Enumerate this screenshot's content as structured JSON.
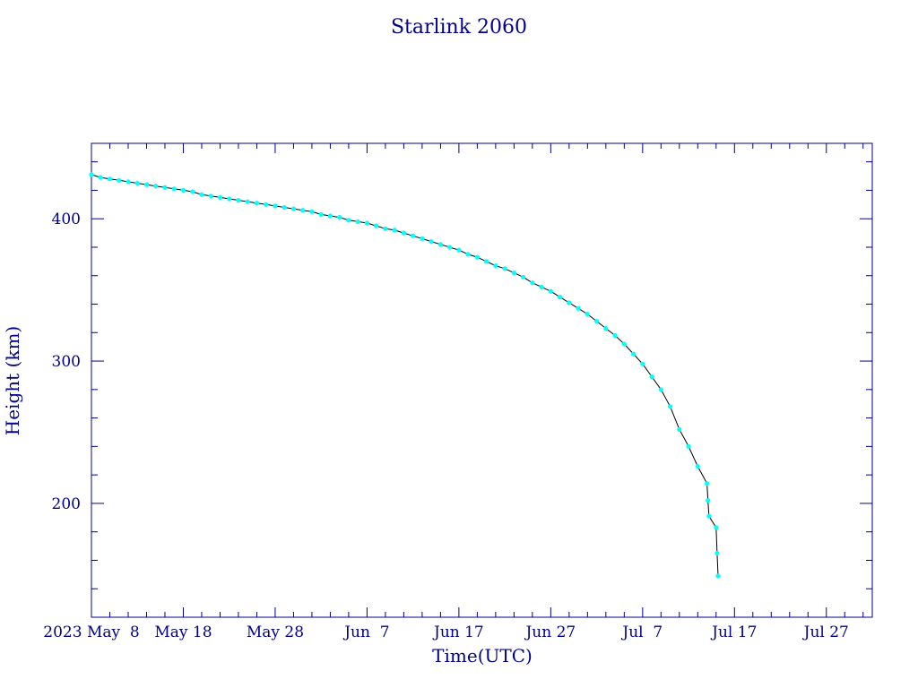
{
  "chart_data": {
    "type": "line",
    "title": "Starlink 2060",
    "xlabel": "Time(UTC)",
    "ylabel": "Height (km)",
    "x_tick_labels": [
      "2023 May  8",
      "May 18",
      "May 28",
      "Jun  7",
      "Jun 17",
      "Jun 27",
      "Jul  7",
      "Jul 17",
      "Jul 27"
    ],
    "y_tick_labels": [
      "200",
      "300",
      "400"
    ],
    "y_ticks": [
      200,
      300,
      400
    ],
    "ylim": [
      120,
      453
    ],
    "xlim": [
      "2023-05-08",
      "2023-08-01"
    ],
    "grid": false,
    "colors": {
      "axis": "#00008b",
      "line": "#000000",
      "marker": "#00ffff"
    },
    "series": [
      {
        "x": [
          "2023-05-08",
          "2023-05-09",
          "2023-05-10",
          "2023-05-11",
          "2023-05-12",
          "2023-05-13",
          "2023-05-14",
          "2023-05-15",
          "2023-05-16",
          "2023-05-17",
          "2023-05-18",
          "2023-05-19",
          "2023-05-20",
          "2023-05-21",
          "2023-05-22",
          "2023-05-23",
          "2023-05-24",
          "2023-05-25",
          "2023-05-26",
          "2023-05-27",
          "2023-05-28",
          "2023-05-29",
          "2023-05-30",
          "2023-05-31",
          "2023-06-01",
          "2023-06-02",
          "2023-06-03",
          "2023-06-04",
          "2023-06-05",
          "2023-06-06",
          "2023-06-07",
          "2023-06-08",
          "2023-06-09",
          "2023-06-10",
          "2023-06-11",
          "2023-06-12",
          "2023-06-13",
          "2023-06-14",
          "2023-06-15",
          "2023-06-16",
          "2023-06-17",
          "2023-06-18",
          "2023-06-19",
          "2023-06-20",
          "2023-06-21",
          "2023-06-22",
          "2023-06-23",
          "2023-06-24",
          "2023-06-25",
          "2023-06-26",
          "2023-06-27",
          "2023-06-28",
          "2023-06-29",
          "2023-06-30",
          "2023-07-01",
          "2023-07-02",
          "2023-07-03",
          "2023-07-04",
          "2023-07-05",
          "2023-07-06",
          "2023-07-07",
          "2023-07-08",
          "2023-07-09",
          "2023-07-10",
          "2023-07-11",
          "2023-07-12",
          "2023-07-13",
          "2023-07-14",
          "2023-07-14",
          "2023-07-14",
          "2023-07-15",
          "2023-07-15",
          "2023-07-15"
        ],
        "y": [
          431,
          429,
          428,
          427,
          426,
          425,
          424,
          423,
          422,
          421,
          420,
          419,
          417,
          416,
          415,
          414,
          413,
          412,
          411,
          410,
          409,
          408,
          407,
          406,
          405,
          403,
          402,
          401,
          399,
          398,
          397,
          395,
          393,
          392,
          390,
          388,
          386,
          384,
          382,
          380,
          378,
          375,
          373,
          370,
          367,
          365,
          362,
          359,
          355,
          352,
          349,
          345,
          341,
          337,
          333,
          328,
          323,
          318,
          312,
          305,
          298,
          289,
          280,
          268,
          252,
          240,
          226,
          214,
          202,
          191,
          183,
          165,
          149
        ]
      }
    ]
  }
}
